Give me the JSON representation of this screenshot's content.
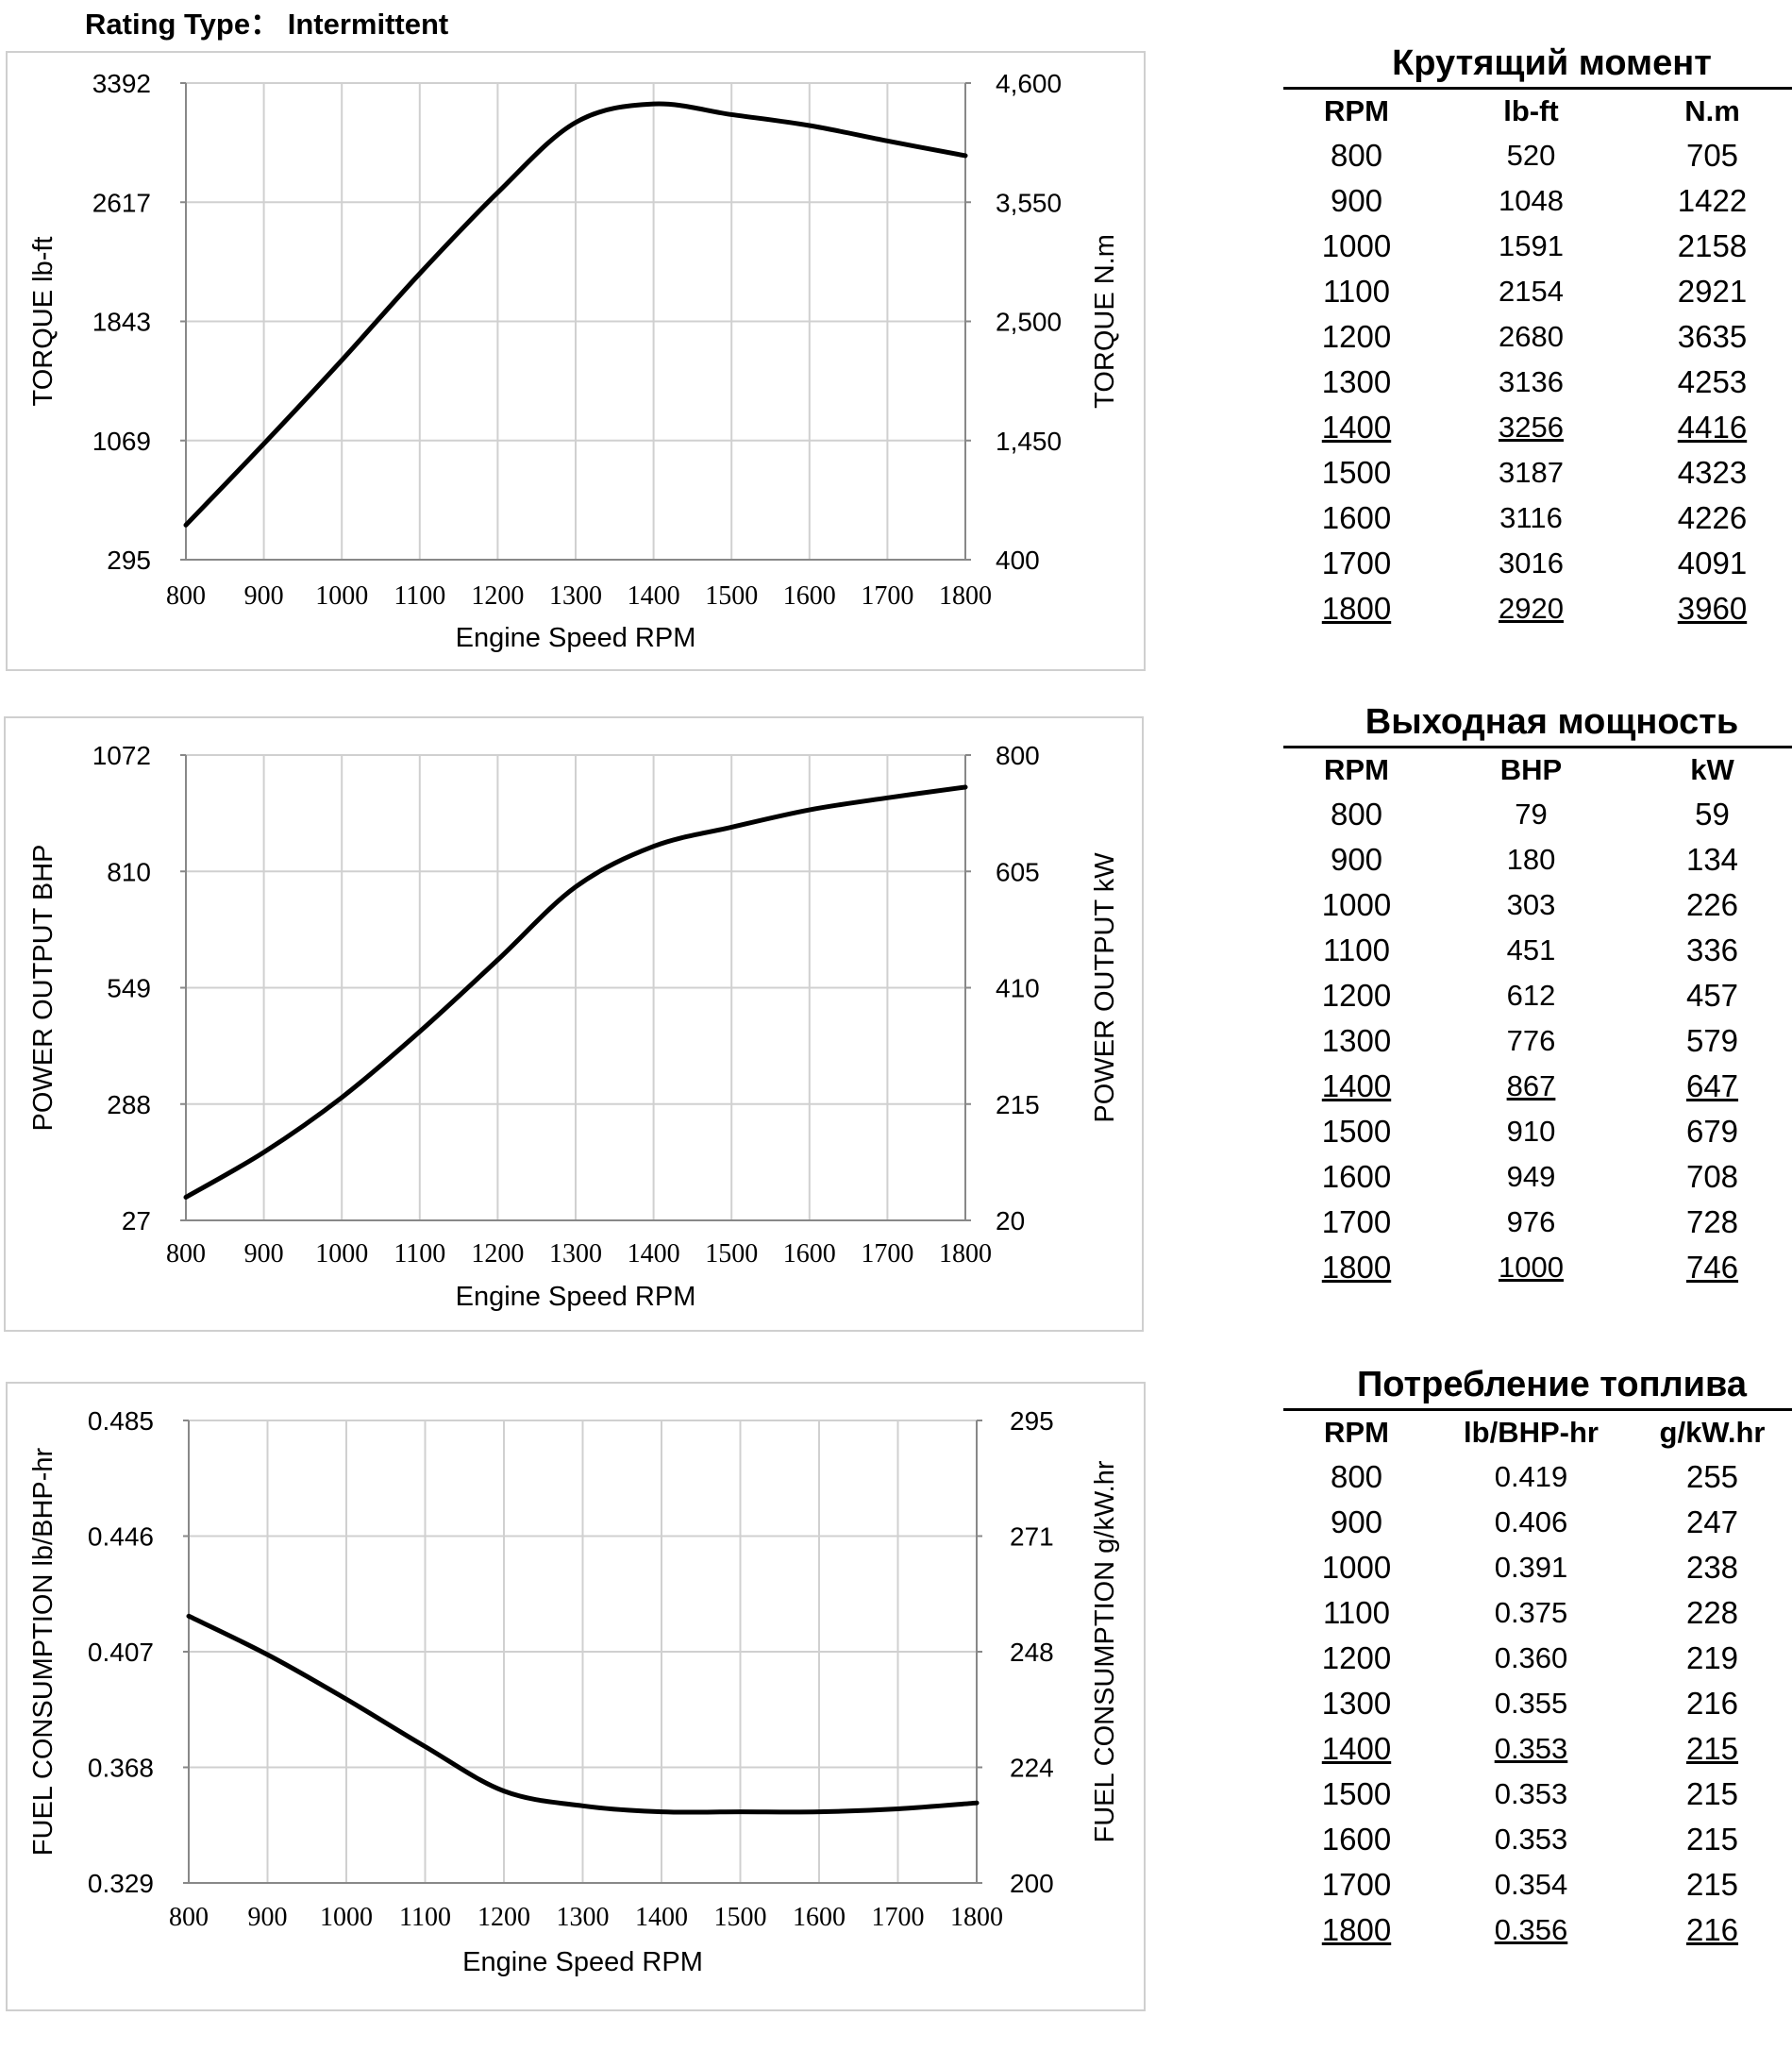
{
  "rating": {
    "label": "Rating Type：",
    "value": "Intermittent"
  },
  "chart_data": [
    {
      "type": "line",
      "xlabel": "Engine Speed RPM",
      "ylabel": "TORQUE lb-ft",
      "ylabel_right": "TORQUE N.m",
      "x_ticks": [
        "800",
        "900",
        "1000",
        "1100",
        "1200",
        "1300",
        "1400",
        "1500",
        "1600",
        "1700",
        "1800"
      ],
      "y_ticks_left": [
        "3392",
        "2617",
        "1843",
        "1069",
        "295"
      ],
      "y_ticks_right": [
        "4,600",
        "3,550",
        "2,500",
        "1,450",
        "400"
      ],
      "xlim": [
        800,
        1800
      ],
      "ylim": [
        295,
        3392
      ],
      "grid": true,
      "x": [
        800,
        900,
        1000,
        1100,
        1200,
        1300,
        1400,
        1500,
        1600,
        1700,
        1800
      ],
      "series": [
        {
          "values": [
            520,
            1048,
            1591,
            2154,
            2680,
            3136,
            3256,
            3187,
            3116,
            3016,
            2920
          ]
        }
      ]
    },
    {
      "type": "line",
      "xlabel": "Engine Speed RPM",
      "ylabel": "POWER OUTPUT BHP",
      "ylabel_right": "POWER OUTPUT kW",
      "x_ticks": [
        "800",
        "900",
        "1000",
        "1100",
        "1200",
        "1300",
        "1400",
        "1500",
        "1600",
        "1700",
        "1800"
      ],
      "y_ticks_left": [
        "1072",
        "810",
        "549",
        "288",
        "27"
      ],
      "y_ticks_right": [
        "800",
        "605",
        "410",
        "215",
        "20"
      ],
      "xlim": [
        800,
        1800
      ],
      "ylim": [
        27,
        1072
      ],
      "grid": true,
      "x": [
        800,
        900,
        1000,
        1100,
        1200,
        1300,
        1400,
        1500,
        1600,
        1700,
        1800
      ],
      "series": [
        {
          "values": [
            79,
            180,
            303,
            451,
            612,
            776,
            867,
            910,
            949,
            976,
            1000
          ]
        }
      ]
    },
    {
      "type": "line",
      "xlabel": "Engine Speed RPM",
      "ylabel": "FUEL CONSUMPTION lb/BHP-hr",
      "ylabel_right": "FUEL CONSUMPTION g/kW.hr",
      "x_ticks": [
        "800",
        "900",
        "1000",
        "1100",
        "1200",
        "1300",
        "1400",
        "1500",
        "1600",
        "1700",
        "1800"
      ],
      "y_ticks_left": [
        "0.485",
        "0.446",
        "0.407",
        "0.368",
        "0.329"
      ],
      "y_ticks_right": [
        "295",
        "271",
        "248",
        "224",
        "200"
      ],
      "xlim": [
        800,
        1800
      ],
      "ylim": [
        0.329,
        0.485
      ],
      "grid": true,
      "x": [
        800,
        900,
        1000,
        1100,
        1200,
        1300,
        1400,
        1500,
        1600,
        1700,
        1800
      ],
      "series": [
        {
          "values": [
            0.419,
            0.406,
            0.391,
            0.375,
            0.36,
            0.355,
            0.353,
            0.353,
            0.353,
            0.354,
            0.356
          ]
        }
      ]
    }
  ],
  "tables": [
    {
      "title": "Крутящий момент",
      "headers": [
        "RPM",
        "lb-ft",
        "N.m"
      ],
      "rows": [
        [
          "800",
          "520",
          "705"
        ],
        [
          "900",
          "1048",
          "1422"
        ],
        [
          "1000",
          "1591",
          "2158"
        ],
        [
          "1100",
          "2154",
          "2921"
        ],
        [
          "1200",
          "2680",
          "3635"
        ],
        [
          "1300",
          "3136",
          "4253"
        ],
        [
          "1400",
          "3256",
          "4416"
        ],
        [
          "1500",
          "3187",
          "4323"
        ],
        [
          "1600",
          "3116",
          "4226"
        ],
        [
          "1700",
          "3016",
          "4091"
        ],
        [
          "1800",
          "2920",
          "3960"
        ]
      ],
      "underlined_rows": [
        6,
        10
      ]
    },
    {
      "title": "Выходная мощность",
      "headers": [
        "RPM",
        "BHP",
        "kW"
      ],
      "rows": [
        [
          "800",
          "79",
          "59"
        ],
        [
          "900",
          "180",
          "134"
        ],
        [
          "1000",
          "303",
          "226"
        ],
        [
          "1100",
          "451",
          "336"
        ],
        [
          "1200",
          "612",
          "457"
        ],
        [
          "1300",
          "776",
          "579"
        ],
        [
          "1400",
          "867",
          "647"
        ],
        [
          "1500",
          "910",
          "679"
        ],
        [
          "1600",
          "949",
          "708"
        ],
        [
          "1700",
          "976",
          "728"
        ],
        [
          "1800",
          "1000",
          "746"
        ]
      ],
      "underlined_rows": [
        6,
        10
      ]
    },
    {
      "title": "Потребление топлива",
      "headers": [
        "RPM",
        "lb/BHP-hr",
        "g/kW.hr"
      ],
      "rows": [
        [
          "800",
          "0.419",
          "255"
        ],
        [
          "900",
          "0.406",
          "247"
        ],
        [
          "1000",
          "0.391",
          "238"
        ],
        [
          "1100",
          "0.375",
          "228"
        ],
        [
          "1200",
          "0.360",
          "219"
        ],
        [
          "1300",
          "0.355",
          "216"
        ],
        [
          "1400",
          "0.353",
          "215"
        ],
        [
          "1500",
          "0.353",
          "215"
        ],
        [
          "1600",
          "0.353",
          "215"
        ],
        [
          "1700",
          "0.354",
          "215"
        ],
        [
          "1800",
          "0.356",
          "216"
        ]
      ],
      "underlined_rows": [
        6,
        10
      ]
    }
  ]
}
